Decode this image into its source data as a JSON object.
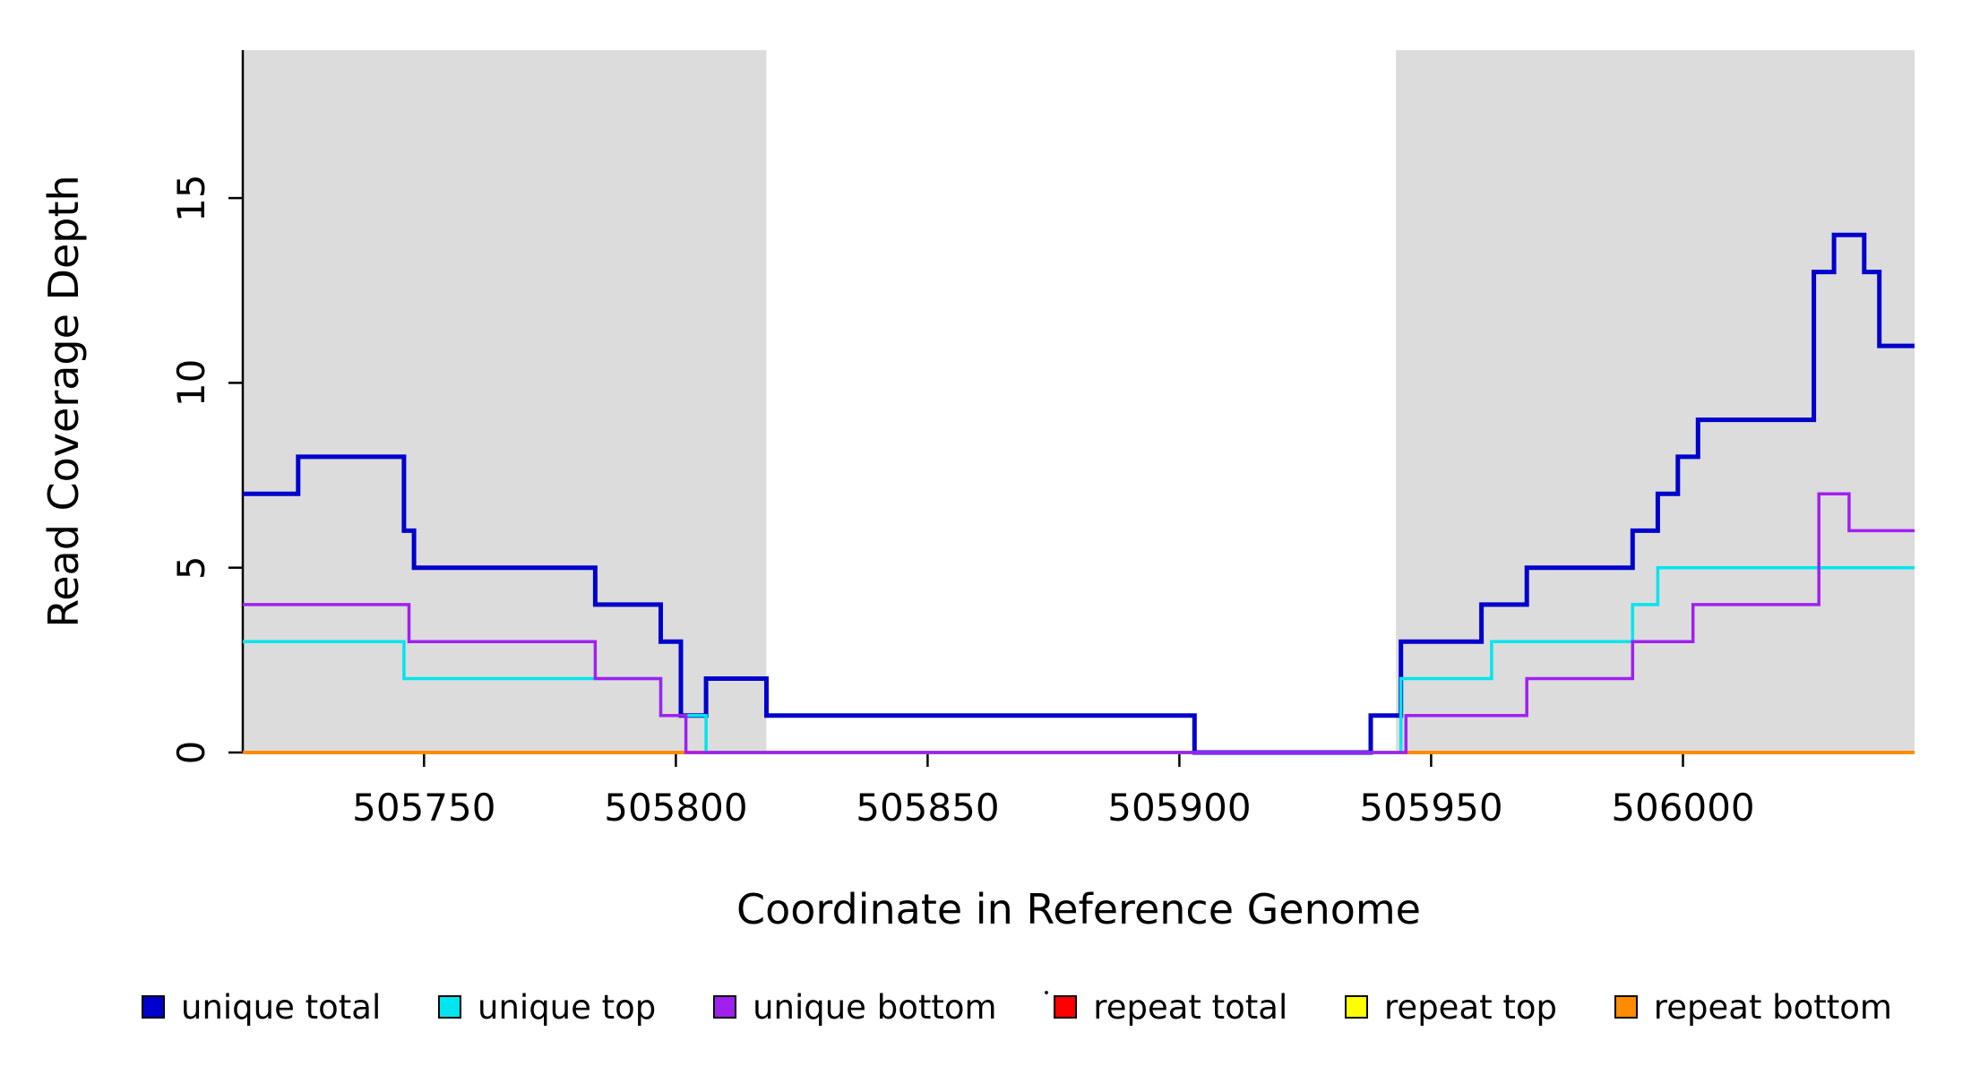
{
  "page": {
    "background": "#ffffff"
  },
  "chart_data": {
    "type": "line",
    "line_style": "step",
    "title": "",
    "xlabel": "Coordinate in Reference Genome",
    "ylabel": "Read Coverage Depth",
    "xlim": [
      505714,
      506046
    ],
    "ylim": [
      0,
      19
    ],
    "xticks": [
      505750,
      505800,
      505850,
      505900,
      505950,
      506000
    ],
    "yticks": [
      0,
      5,
      10,
      15
    ],
    "grid": false,
    "legend_position": "bottom",
    "shaded_regions": [
      {
        "x0": 505714,
        "x1": 505818,
        "color": "#dcdcdc"
      },
      {
        "x0": 505943,
        "x1": 506046,
        "color": "#dcdcdc"
      }
    ],
    "series": [
      {
        "name": "unique total",
        "color": "#0000cd",
        "steps": [
          [
            505714,
            7
          ],
          [
            505725,
            8
          ],
          [
            505746,
            6
          ],
          [
            505748,
            5
          ],
          [
            505784,
            4
          ],
          [
            505797,
            3
          ],
          [
            505801,
            1
          ],
          [
            505806,
            2
          ],
          [
            505818,
            1
          ],
          [
            505903,
            0
          ],
          [
            505938,
            1
          ],
          [
            505944,
            3
          ],
          [
            505960,
            4
          ],
          [
            505969,
            5
          ],
          [
            505990,
            6
          ],
          [
            505995,
            7
          ],
          [
            505999,
            8
          ],
          [
            506003,
            9
          ],
          [
            506026,
            13
          ],
          [
            506030,
            14
          ],
          [
            506036,
            13
          ],
          [
            506039,
            11
          ]
        ]
      },
      {
        "name": "unique top",
        "color": "#00e5ee",
        "steps": [
          [
            505714,
            3
          ],
          [
            505746,
            2
          ],
          [
            505797,
            1
          ],
          [
            505806,
            0
          ],
          [
            505944,
            2
          ],
          [
            505962,
            3
          ],
          [
            505990,
            4
          ],
          [
            505995,
            5
          ]
        ]
      },
      {
        "name": "unique bottom",
        "color": "#a020f0",
        "steps": [
          [
            505714,
            4
          ],
          [
            505747,
            3
          ],
          [
            505784,
            2
          ],
          [
            505797,
            1
          ],
          [
            505802,
            0
          ],
          [
            505945,
            1
          ],
          [
            505969,
            2
          ],
          [
            505990,
            3
          ],
          [
            506002,
            4
          ],
          [
            506027,
            7
          ],
          [
            506033,
            6
          ]
        ]
      },
      {
        "name": "repeat total",
        "color": "#ff0000",
        "steps": [
          [
            505714,
            0
          ]
        ]
      },
      {
        "name": "repeat top",
        "color": "#ffff00",
        "steps": [
          [
            505714,
            0
          ]
        ]
      },
      {
        "name": "repeat bottom",
        "color": "#ff8c00",
        "steps": [
          [
            505714,
            0
          ]
        ]
      }
    ]
  }
}
